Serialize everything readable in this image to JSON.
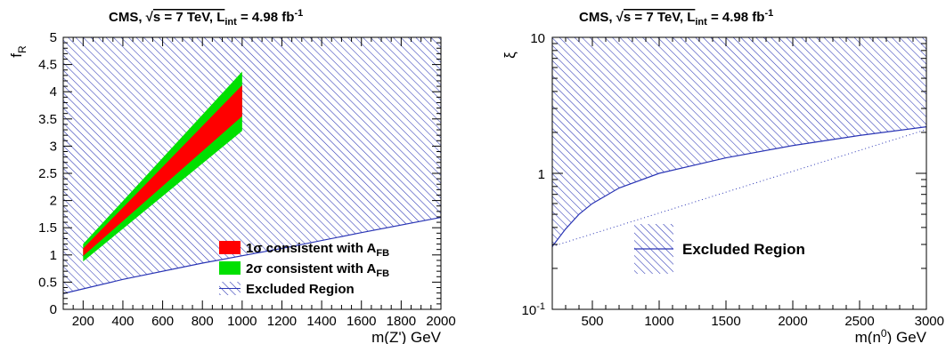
{
  "chart_data": [
    {
      "type": "area",
      "title": "CMS, √s = 7 TeV, L_int = 4.98 fb^-1",
      "title_parts": {
        "prefix": "CMS, ",
        "sqrt": "√",
        "s_eq": "s = 7 TeV, L",
        "sub": "int",
        "eq": " = 4.98 fb",
        "sup": "-1"
      },
      "xlabel": "m(Z') GeV",
      "ylabel": "f",
      "ylabel_sub": "R",
      "xlim": [
        100,
        2000
      ],
      "ylim": [
        0,
        5
      ],
      "x_ticks": [
        "200",
        "400",
        "600",
        "800",
        "1000",
        "1200",
        "1400",
        "1600",
        "1800",
        "2000"
      ],
      "y_ticks": [
        "0",
        "0.5",
        "1",
        "1.5",
        "2",
        "2.5",
        "3",
        "3.5",
        "4",
        "4.5",
        "5"
      ],
      "excluded_boundary": {
        "x": [
          100,
          400,
          800,
          1200,
          1600,
          2000
        ],
        "y": [
          0.29,
          0.55,
          0.85,
          1.12,
          1.41,
          1.69
        ]
      },
      "band_2sigma": {
        "x_range": [
          200,
          1000
        ],
        "y_low": [
          0.88,
          3.28
        ],
        "y_high": [
          1.2,
          4.37
        ]
      },
      "band_1sigma": {
        "x_range": [
          200,
          1000
        ],
        "y_low": [
          0.98,
          3.55
        ],
        "y_high": [
          1.12,
          4.12
        ]
      },
      "legend": [
        {
          "label": "1σ consistent with A",
          "sub": "FB",
          "color": "#ff0000"
        },
        {
          "label": "2σ consistent with A",
          "sub": "FB",
          "color": "#00e000"
        },
        {
          "label": "Excluded Region",
          "style": "hatched"
        }
      ],
      "legend_position": "bottom-right",
      "colors": {
        "hatch": "#2a35b5",
        "sigma1": "#ff0000",
        "sigma2": "#00e000"
      }
    },
    {
      "type": "area",
      "title": "CMS, √s = 7 TeV, L_int = 4.98 fb^-1",
      "title_parts": {
        "prefix": "CMS, ",
        "sqrt": "√",
        "s_eq": "s = 7 TeV, L",
        "sub": "int",
        "eq": " = 4.98 fb",
        "sup": "-1"
      },
      "xlabel": "m(n",
      "xlabel_sup": "0",
      "xlabel_end": ") GeV",
      "ylabel": "ξ",
      "xlim": [
        200,
        3000
      ],
      "ylim": [
        0.1,
        10
      ],
      "yscale": "log",
      "x_ticks": [
        "500",
        "1000",
        "1500",
        "2000",
        "2500",
        "3000"
      ],
      "y_ticks": [
        {
          "base": "10",
          "exp": "-1"
        },
        {
          "text": "1"
        },
        {
          "text": "10"
        }
      ],
      "excluded_boundary": {
        "x": [
          200,
          300,
          400,
          500,
          700,
          1000,
          1500,
          2000,
          2500,
          3000
        ],
        "y": [
          0.29,
          0.39,
          0.5,
          0.6,
          0.78,
          1.0,
          1.3,
          1.6,
          1.9,
          2.2
        ]
      },
      "dotted_line": {
        "x": [
          200,
          3000
        ],
        "y": [
          0.29,
          2.1
        ]
      },
      "legend": [
        {
          "label": "Excluded Region",
          "style": "hatched"
        }
      ],
      "legend_position": "center",
      "colors": {
        "hatch": "#2a35b5"
      }
    }
  ]
}
